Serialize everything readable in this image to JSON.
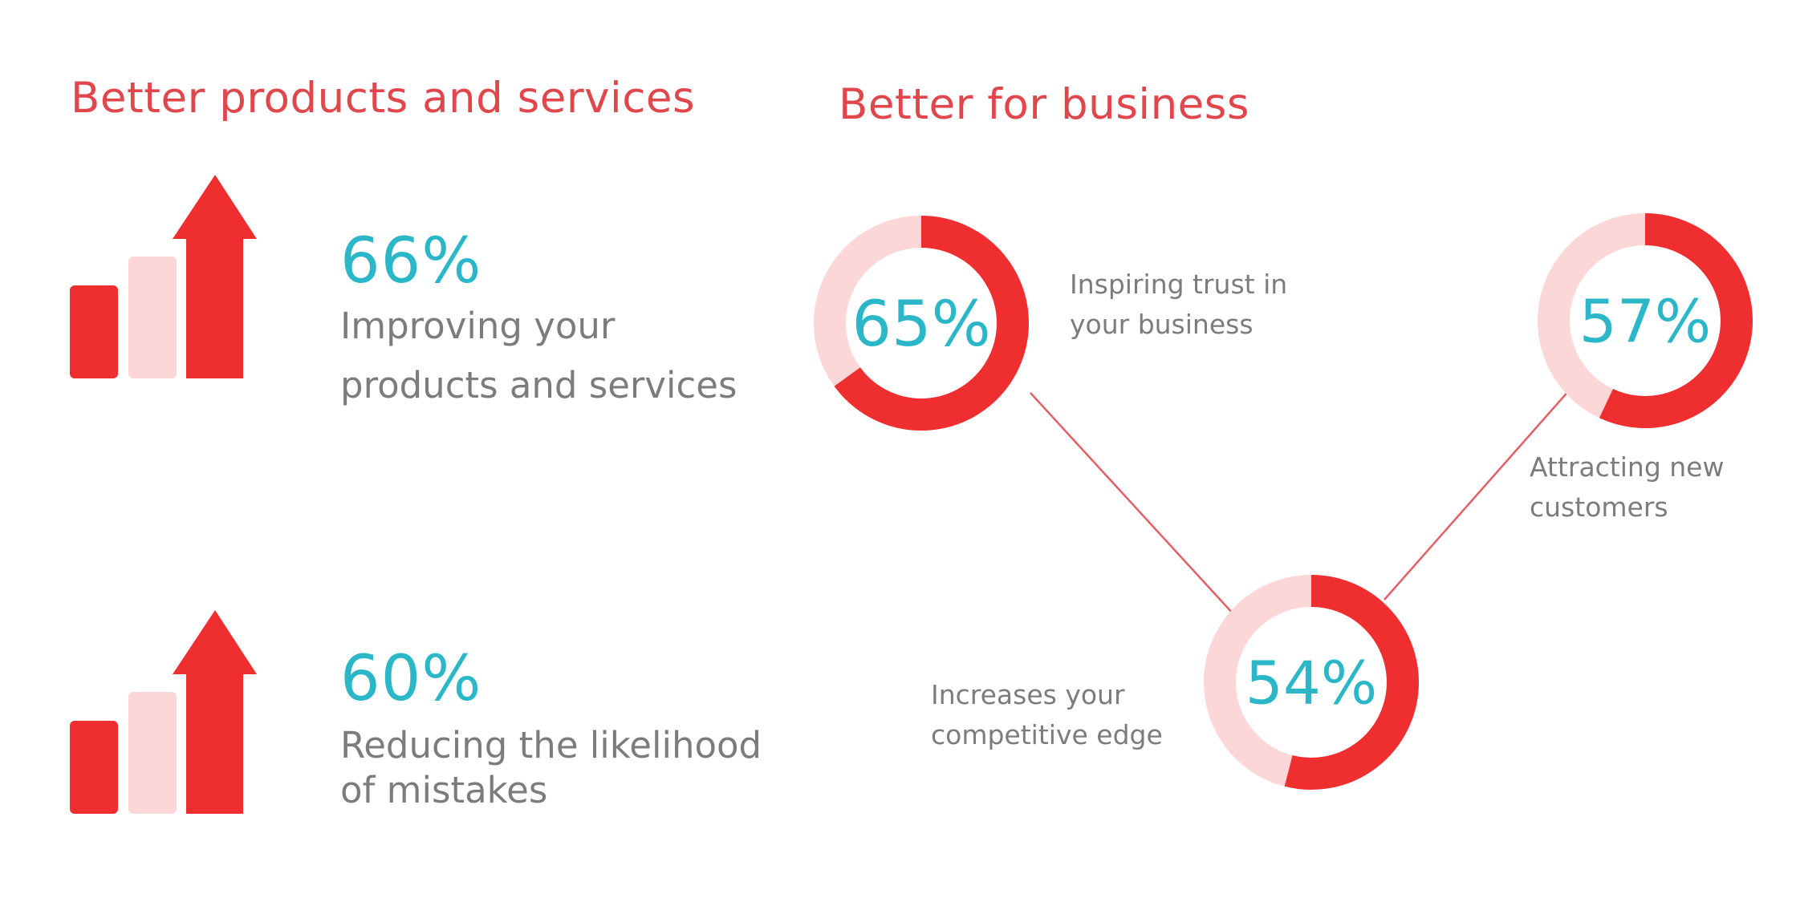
{
  "colors": {
    "heading": "#e0474c",
    "percent": "#2bb7c7",
    "text": "#7c7c7c",
    "red": "#ee2e2f",
    "pink": "#fbd7d8",
    "connector": "#e06065"
  },
  "left": {
    "heading": "Better products and services",
    "items": [
      {
        "icon": "bar-chart-arrow-icon",
        "percent": "66%",
        "lines": [
          "Improving your",
          "products and services"
        ]
      },
      {
        "icon": "bar-chart-arrow-icon",
        "percent": "60%",
        "lines": [
          "Reducing the likelihood",
          "of mistakes"
        ]
      }
    ]
  },
  "right": {
    "heading": "Better for business"
  },
  "chart_data": {
    "type": "pie",
    "title": "Better for business",
    "series": [
      {
        "label": "65%",
        "value": 65,
        "lines": [
          "Inspiring trust in",
          "your business"
        ]
      },
      {
        "label": "54%",
        "value": 54,
        "lines": [
          "Increases your",
          "competitive edge"
        ]
      },
      {
        "label": "57%",
        "value": 57,
        "lines": [
          "Attracting new",
          "customers"
        ]
      }
    ]
  }
}
